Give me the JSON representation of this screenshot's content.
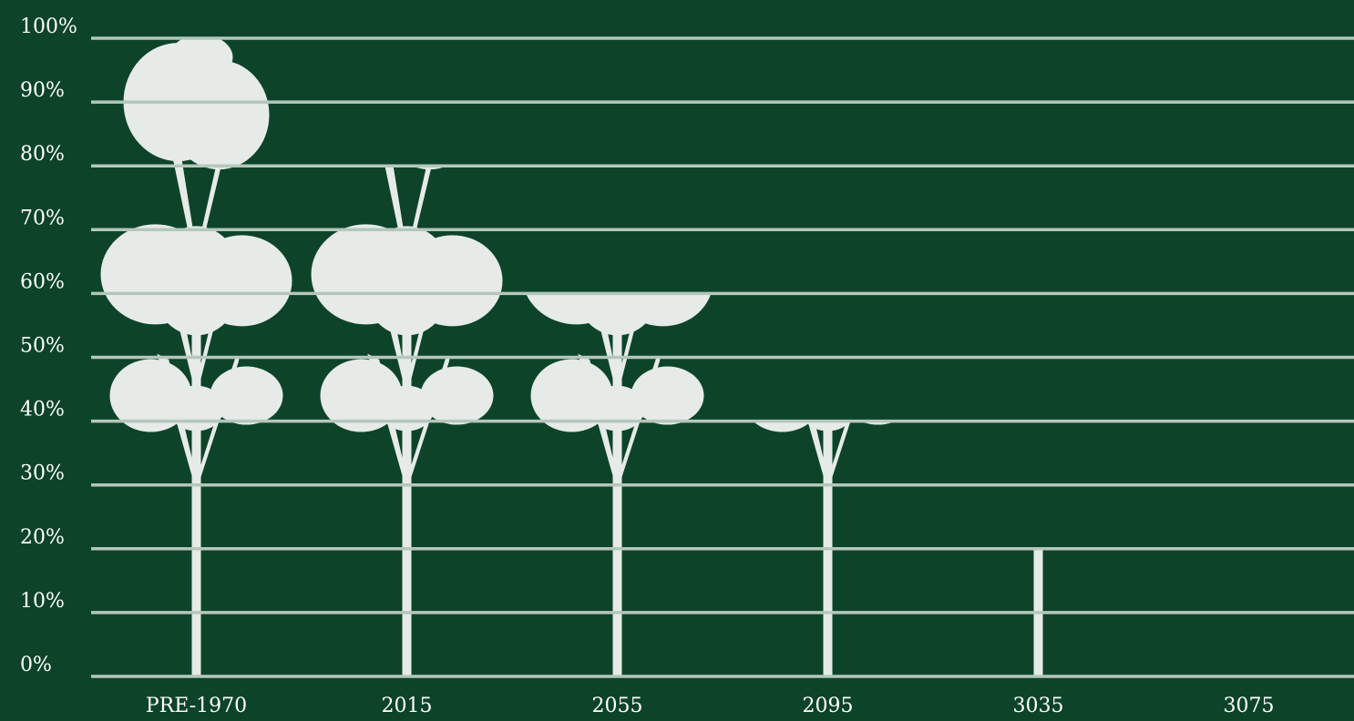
{
  "chart_data": {
    "type": "pictogram",
    "categories": [
      "PRE-1970",
      "2015",
      "2055",
      "2095",
      "3035",
      "3075"
    ],
    "values": [
      100,
      80,
      60,
      40,
      20,
      0
    ],
    "color": "#e6ebe8",
    "ylim": [
      0,
      100
    ],
    "yticks": [
      {
        "value": 0,
        "label": "0%"
      },
      {
        "value": 10,
        "label": "10%"
      },
      {
        "value": 20,
        "label": "20%"
      },
      {
        "value": 30,
        "label": "30%"
      },
      {
        "value": 40,
        "label": "40%"
      },
      {
        "value": 50,
        "label": "50%"
      },
      {
        "value": 60,
        "label": "60%"
      },
      {
        "value": 70,
        "label": "70%"
      },
      {
        "value": 80,
        "label": "80%"
      },
      {
        "value": 90,
        "label": "90%"
      },
      {
        "value": 100,
        "label": "100%"
      }
    ],
    "grid": true
  }
}
